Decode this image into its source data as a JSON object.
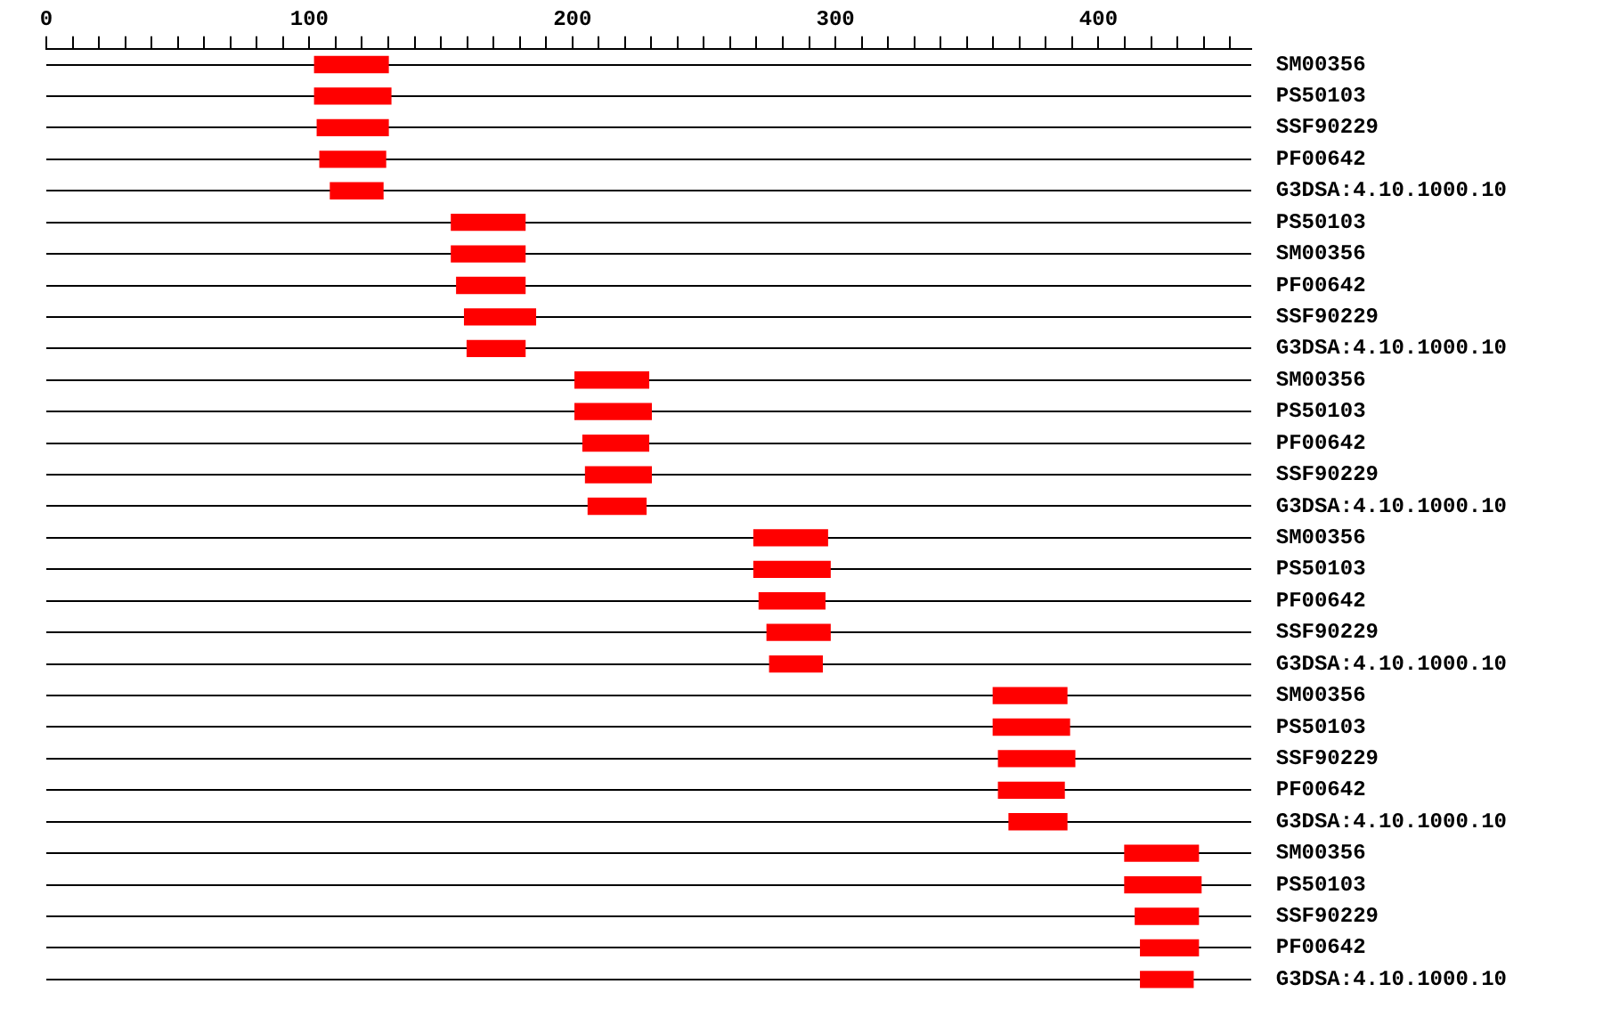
{
  "chart_data": {
    "type": "bar",
    "orientation": "horizontal",
    "grid": "y",
    "categories": [
      "SM00356",
      "PS50103",
      "SSF90229",
      "PF00642",
      "G3DSA:4.10.1000.10",
      "PS50103",
      "SM00356",
      "PF00642",
      "SSF90229",
      "G3DSA:4.10.1000.10",
      "SM00356",
      "PS50103",
      "PF00642",
      "SSF90229",
      "G3DSA:4.10.1000.10",
      "SM00356",
      "PS50103",
      "PF00642",
      "SSF90229",
      "G3DSA:4.10.1000.10",
      "SM00356",
      "PS50103",
      "SSF90229",
      "PF00642",
      "G3DSA:4.10.1000.10",
      "SM00356",
      "PS50103",
      "SSF90229",
      "PF00642",
      "G3DSA:4.10.1000.10"
    ],
    "base": [
      102,
      102,
      103,
      104,
      108,
      154,
      154,
      156,
      159,
      160,
      201,
      201,
      204,
      205,
      206,
      269,
      269,
      271,
      274,
      275,
      360,
      360,
      362,
      362,
      366,
      410,
      410,
      414,
      416,
      416
    ],
    "values": [
      28,
      29,
      27,
      25,
      20,
      28,
      28,
      26,
      27,
      22,
      28,
      29,
      25,
      25,
      22,
      28,
      29,
      25,
      24,
      20,
      28,
      29,
      29,
      25,
      22,
      28,
      29,
      24,
      22,
      20
    ],
    "color": "#ff0000",
    "xlim": [
      0,
      458
    ],
    "xticks": [
      0,
      {
        "value": 10,
        "label": null
      },
      {
        "value": 20,
        "label": null
      },
      {
        "value": 30,
        "label": null
      },
      {
        "value": 40,
        "label": null
      },
      {
        "value": 50,
        "label": null
      },
      {
        "value": 60,
        "label": null
      },
      {
        "value": 70,
        "label": null
      },
      {
        "value": 80,
        "label": null
      },
      {
        "value": 90,
        "label": null
      },
      100,
      {
        "value": 110,
        "label": null
      },
      {
        "value": 120,
        "label": null
      },
      {
        "value": 130,
        "label": null
      },
      {
        "value": 140,
        "label": null
      },
      {
        "value": 150,
        "label": null
      },
      {
        "value": 160,
        "label": null
      },
      {
        "value": 170,
        "label": null
      },
      {
        "value": 180,
        "label": null
      },
      {
        "value": 190,
        "label": null
      },
      200,
      {
        "value": 210,
        "label": null
      },
      {
        "value": 220,
        "label": null
      },
      {
        "value": 230,
        "label": null
      },
      {
        "value": 240,
        "label": null
      },
      {
        "value": 250,
        "label": null
      },
      {
        "value": 260,
        "label": null
      },
      {
        "value": 270,
        "label": null
      },
      {
        "value": 280,
        "label": null
      },
      {
        "value": 290,
        "label": null
      },
      300,
      {
        "value": 310,
        "label": null
      },
      {
        "value": 320,
        "label": null
      },
      {
        "value": 330,
        "label": null
      },
      {
        "value": 340,
        "label": null
      },
      {
        "value": 350,
        "label": null
      },
      {
        "value": 360,
        "label": null
      },
      {
        "value": 370,
        "label": null
      },
      {
        "value": 380,
        "label": null
      },
      {
        "value": 390,
        "label": null
      },
      400,
      {
        "value": 410,
        "label": null
      },
      {
        "value": 420,
        "label": null
      },
      {
        "value": 430,
        "label": null
      },
      {
        "value": 440,
        "label": null
      },
      {
        "value": 450,
        "label": null
      }
    ]
  }
}
